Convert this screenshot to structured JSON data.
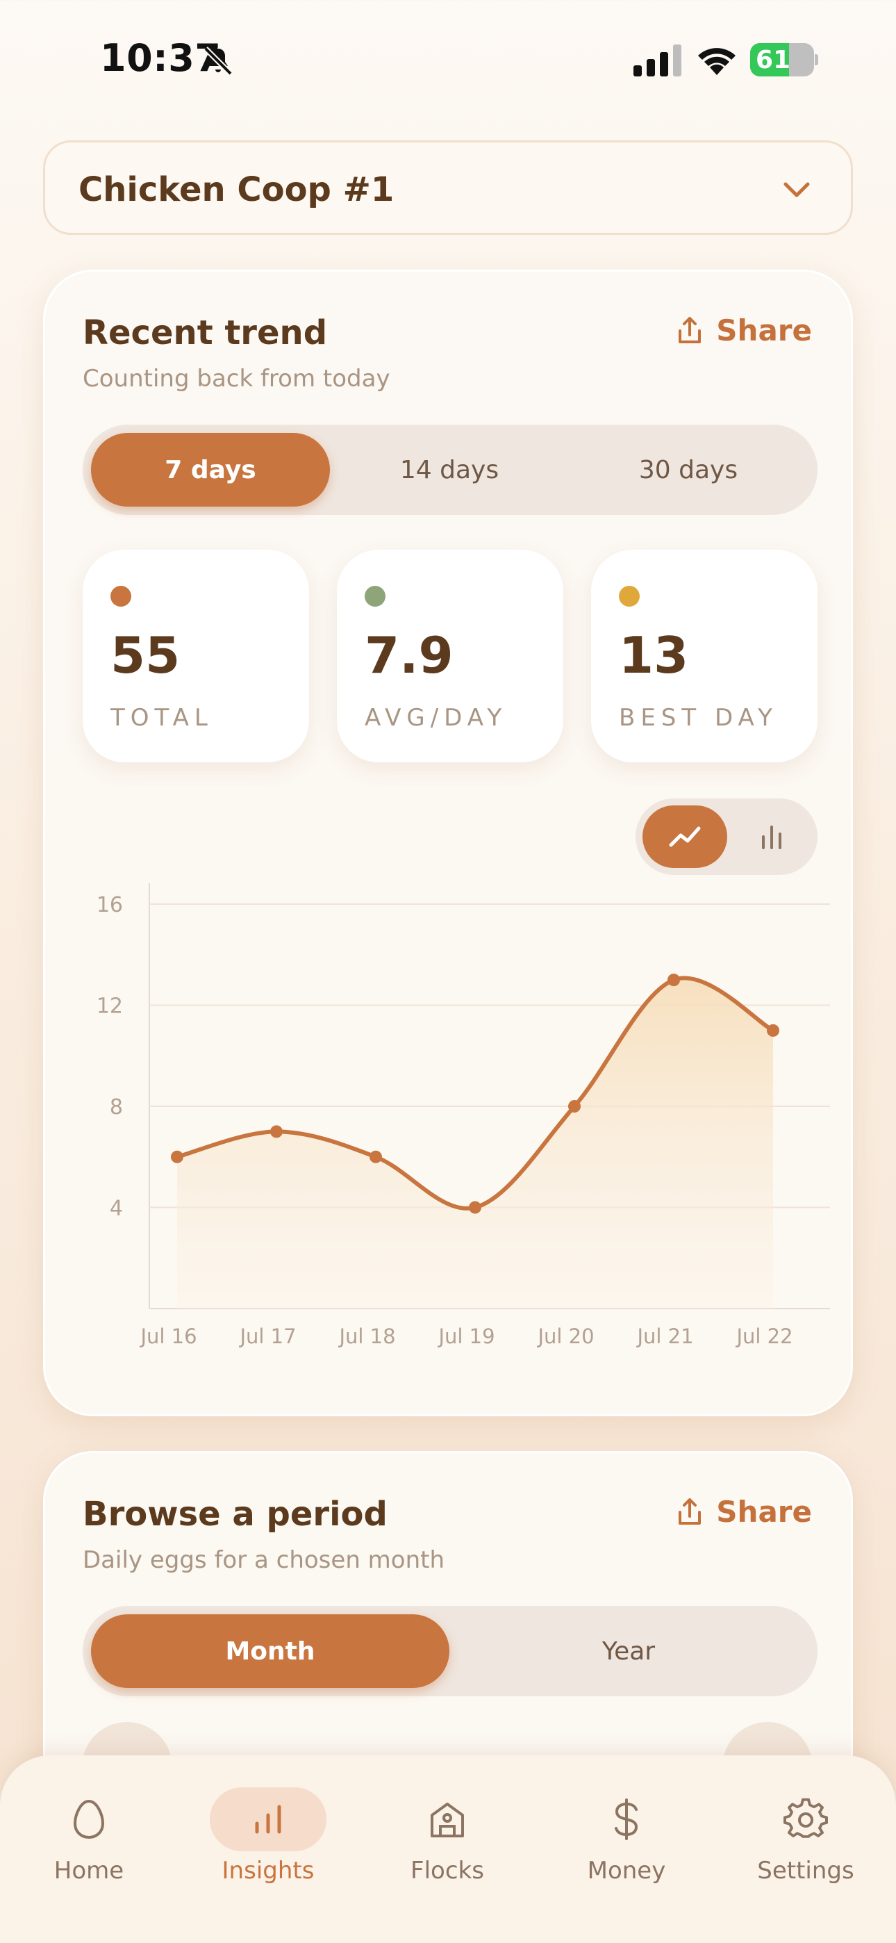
{
  "status_bar": {
    "time": "10:37",
    "battery_percent": "61",
    "battery_level": 0.61
  },
  "coop_selector": {
    "selected": "Chicken Coop #1"
  },
  "trend_card": {
    "title": "Recent trend",
    "subtitle": "Counting back from today",
    "share_label": "Share",
    "ranges": [
      "7 days",
      "14 days",
      "30 days"
    ],
    "active_range": "7 days",
    "stats": [
      {
        "value": "55",
        "label": "TOTAL",
        "color": "#c8753f"
      },
      {
        "value": "7.9",
        "label": "AVG/DAY",
        "color": "#8ea57a"
      },
      {
        "value": "13",
        "label": "BEST DAY",
        "color": "#e0a83a"
      }
    ],
    "chart_mode": "line"
  },
  "chart_data": {
    "type": "area",
    "categories": [
      "Jul 16",
      "Jul 17",
      "Jul 18",
      "Jul 19",
      "Jul 20",
      "Jul 21",
      "Jul 22"
    ],
    "values": [
      6,
      7,
      6,
      4,
      8,
      13,
      11
    ],
    "yticks": [
      4,
      8,
      12,
      16
    ],
    "ylim": [
      0,
      16
    ],
    "grid": true,
    "line_color": "#c8753f",
    "fill_color": "#f8e3c6"
  },
  "browse_card": {
    "title": "Browse a period",
    "subtitle": "Daily eggs for a chosen month",
    "share_label": "Share",
    "modes": [
      "Month",
      "Year"
    ],
    "active_mode": "Month"
  },
  "tab_bar": {
    "items": [
      {
        "label": "Home",
        "icon": "egg-icon"
      },
      {
        "label": "Insights",
        "icon": "bar-chart-icon"
      },
      {
        "label": "Flocks",
        "icon": "barn-icon"
      },
      {
        "label": "Money",
        "icon": "dollar-icon"
      },
      {
        "label": "Settings",
        "icon": "gear-icon"
      }
    ],
    "active": "Insights"
  },
  "colors": {
    "accent": "#c8753f",
    "text": "#5b3a1e",
    "muted": "#a99583"
  }
}
